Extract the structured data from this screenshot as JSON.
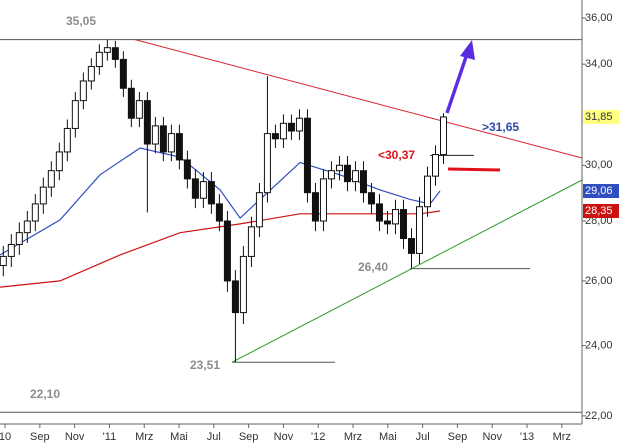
{
  "chart_data": {
    "type": "candlestick",
    "log": true,
    "ylim": [
      21.78,
      36.81
    ],
    "yticks": [
      {
        "value": 22,
        "label": "22,00"
      },
      {
        "value": 24,
        "label": "24,00"
      },
      {
        "value": 26,
        "label": "26,00"
      },
      {
        "value": 28,
        "label": "28,00"
      },
      {
        "value": 30,
        "label": "30,00"
      },
      {
        "value": 34,
        "label": "34,00"
      },
      {
        "value": 36,
        "label": "36,00"
      }
    ],
    "xlim": [
      5.71,
      39.16
    ],
    "xticks": [
      {
        "value": 6,
        "label": "10"
      },
      {
        "value": 8,
        "label": "Sep"
      },
      {
        "value": 10,
        "label": "Nov"
      },
      {
        "value": 12,
        "label": "'11"
      },
      {
        "value": 14,
        "label": "Mrz"
      },
      {
        "value": 16,
        "label": "Mai"
      },
      {
        "value": 18,
        "label": "Jul"
      },
      {
        "value": 20,
        "label": "Sep"
      },
      {
        "value": 22,
        "label": "Nov"
      },
      {
        "value": 24,
        "label": "'12"
      },
      {
        "value": 26,
        "label": "Mrz"
      },
      {
        "value": 28,
        "label": "Mai"
      },
      {
        "value": 30,
        "label": "Jul"
      },
      {
        "value": 32,
        "label": "Sep"
      },
      {
        "value": 34,
        "label": "Nov"
      },
      {
        "value": 36,
        "label": "'13"
      },
      {
        "value": 38,
        "label": "Mrz"
      }
    ],
    "x": [
      5.9,
      6.36,
      6.82,
      7.28,
      7.74,
      8.2,
      8.66,
      9.12,
      9.58,
      10.04,
      10.5,
      10.96,
      11.42,
      11.88,
      12.34,
      12.8,
      13.26,
      13.72,
      14.18,
      14.64,
      15.1,
      15.56,
      16.02,
      16.48,
      16.94,
      17.4,
      17.86,
      18.32,
      18.78,
      19.24,
      19.7,
      20.16,
      20.62,
      21.08,
      21.54,
      22,
      22.46,
      22.92,
      23.38,
      23.84,
      24.3,
      24.76,
      25.22,
      25.68,
      26.14,
      26.6,
      27.06,
      27.52,
      27.98,
      28.44,
      28.9,
      29.36,
      29.82,
      30.28,
      30.74,
      31.2
    ],
    "ohlc": [
      [
        26.5,
        27.15,
        26.15,
        26.8
      ],
      [
        26.8,
        27.55,
        26.45,
        27.2
      ],
      [
        27.2,
        27.95,
        26.85,
        27.6
      ],
      [
        27.6,
        28.35,
        27.25,
        28.0
      ],
      [
        28.0,
        28.95,
        27.65,
        28.6
      ],
      [
        28.6,
        29.55,
        28.25,
        29.2
      ],
      [
        29.2,
        30.15,
        28.85,
        29.8
      ],
      [
        29.8,
        30.85,
        29.45,
        30.5
      ],
      [
        30.5,
        31.75,
        30.15,
        31.4
      ],
      [
        31.4,
        32.85,
        31.05,
        32.5
      ],
      [
        32.5,
        33.65,
        32.15,
        33.3
      ],
      [
        33.3,
        34.25,
        32.95,
        33.9
      ],
      [
        33.9,
        34.85,
        33.55,
        34.5
      ],
      [
        34.5,
        35.05,
        34.15,
        34.7
      ],
      [
        34.7,
        35.0,
        33.85,
        34.2
      ],
      [
        34.2,
        34.55,
        32.65,
        33.0
      ],
      [
        33.0,
        33.35,
        31.45,
        31.8
      ],
      [
        31.8,
        32.85,
        31.45,
        32.5
      ],
      [
        32.5,
        32.85,
        28.3,
        30.8
      ],
      [
        30.8,
        31.85,
        30.45,
        31.5
      ],
      [
        31.5,
        31.85,
        30.15,
        30.5
      ],
      [
        30.5,
        31.55,
        30.15,
        31.2
      ],
      [
        31.2,
        31.55,
        29.85,
        30.2
      ],
      [
        30.2,
        30.55,
        29.15,
        29.5
      ],
      [
        29.5,
        29.85,
        28.45,
        28.8
      ],
      [
        28.8,
        29.75,
        28.45,
        29.4
      ],
      [
        29.4,
        29.75,
        28.25,
        28.6
      ],
      [
        28.6,
        28.95,
        27.65,
        28.0
      ],
      [
        28.0,
        28.35,
        25.65,
        26.0
      ],
      [
        26.0,
        26.35,
        23.51,
        25.0
      ],
      [
        25.0,
        27.15,
        24.65,
        26.8
      ],
      [
        26.8,
        28.15,
        26.45,
        27.8
      ],
      [
        27.8,
        29.35,
        27.45,
        29.0
      ],
      [
        29.0,
        33.5,
        28.65,
        31.2
      ],
      [
        31.2,
        31.55,
        30.65,
        31.0
      ],
      [
        31.0,
        31.95,
        30.65,
        31.6
      ],
      [
        31.6,
        31.95,
        30.95,
        31.3
      ],
      [
        31.3,
        32.15,
        30.95,
        31.8
      ],
      [
        31.8,
        32.15,
        28.65,
        29.0
      ],
      [
        29.0,
        29.35,
        27.65,
        28.0
      ],
      [
        28.0,
        29.85,
        27.65,
        29.5
      ],
      [
        29.5,
        30.15,
        29.15,
        29.8
      ],
      [
        29.8,
        30.35,
        29.45,
        30.0
      ],
      [
        30.0,
        30.35,
        29.05,
        29.4
      ],
      [
        29.4,
        30.15,
        29.05,
        29.8
      ],
      [
        29.8,
        30.15,
        28.65,
        29.0
      ],
      [
        29.0,
        29.35,
        28.25,
        28.6
      ],
      [
        28.6,
        28.95,
        27.65,
        28.0
      ],
      [
        28.0,
        28.35,
        27.55,
        27.9
      ],
      [
        27.9,
        28.75,
        27.55,
        28.4
      ],
      [
        28.4,
        28.75,
        27.05,
        27.4
      ],
      [
        27.4,
        27.75,
        26.4,
        26.9
      ],
      [
        26.9,
        28.85,
        26.55,
        28.5
      ],
      [
        28.5,
        29.95,
        28.15,
        29.6
      ],
      [
        29.6,
        30.75,
        29.25,
        30.4
      ],
      [
        30.4,
        32.0,
        30.05,
        31.85
      ]
    ],
    "last": {
      "value": 31.85,
      "label": "31,85",
      "color": "#ffff80"
    },
    "series": [
      {
        "color": "#2f4fc0",
        "x": [
          5.71,
          9.16,
          11.46,
          13.76,
          16.06,
          18.36,
          19.51,
          20.66,
          22.95,
          25.25,
          27.55,
          29.28,
          30.43,
          31.0
        ],
        "values": [
          26.85,
          28.04,
          29.65,
          30.65,
          30.3,
          29.1,
          28.1,
          28.76,
          30.1,
          29.65,
          29.1,
          28.76,
          28.6,
          29.06
        ],
        "last": {
          "value": 29.06,
          "label": "29,06"
        }
      },
      {
        "color": "#cc1111",
        "x": [
          5.71,
          9.16,
          12.61,
          16.06,
          19.51,
          22.95,
          25.25,
          27.55,
          29.85,
          31.0
        ],
        "values": [
          25.8,
          26.0,
          26.85,
          27.6,
          27.9,
          28.25,
          28.25,
          28.25,
          28.25,
          28.35
        ],
        "last": {
          "value": 28.35,
          "label": "28,35"
        }
      }
    ],
    "trendlines": [
      {
        "color": "#d9232e",
        "x": [
          13.47,
          39.16
        ],
        "values": [
          35.05,
          30.27
        ]
      },
      {
        "color": "#2a9a2a",
        "x": [
          19.05,
          39.16
        ],
        "values": [
          23.51,
          29.46
        ]
      }
    ],
    "levels": [
      {
        "label": "35,05",
        "value": 35.05,
        "x": [
          5.71,
          39.16
        ],
        "color": "#8c8c8c"
      },
      {
        "label": "23,51",
        "value": 23.51,
        "x": [
          19.05,
          24.97
        ],
        "color": "#8c8c8c"
      },
      {
        "label": "26,40",
        "value": 26.4,
        "x": [
          29.28,
          36.17
        ],
        "color": "#8c8c8c"
      },
      {
        "label": "22,10",
        "value": 22.1,
        "x": [
          5.71,
          39.16
        ],
        "color": "#8c8c8c"
      },
      {
        "label": "<30,37",
        "value": 30.37,
        "x": [
          30.43,
          32.95
        ],
        "color": "#e0101a"
      },
      {
        "label": ">31,65",
        "value": 31.65,
        "color": "#2c4aa8"
      }
    ]
  }
}
